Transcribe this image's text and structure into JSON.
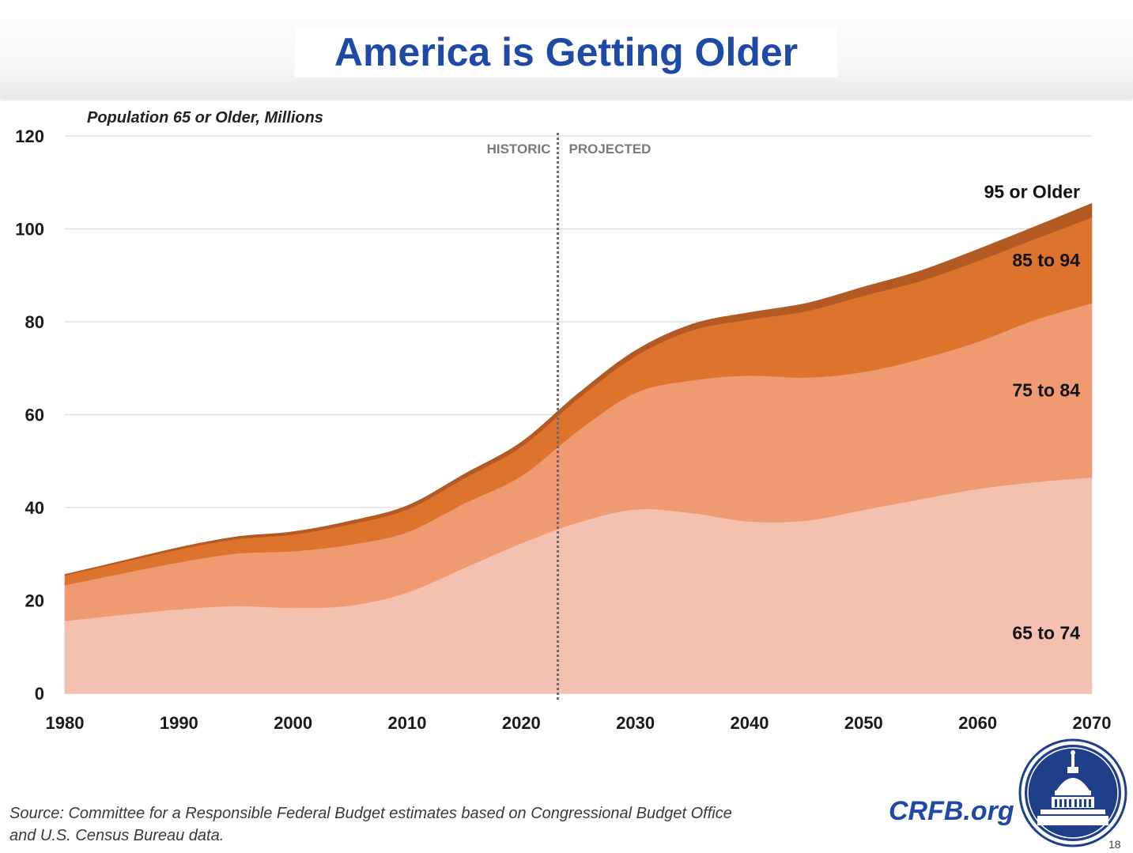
{
  "header": {
    "title": "America is Getting Older"
  },
  "chart_data": {
    "type": "area",
    "stacked": true,
    "ylabel": "Population 65 or Older, Millions",
    "xlim": [
      1980,
      2070
    ],
    "ylim": [
      0,
      120
    ],
    "x_ticks": [
      1980,
      1990,
      2000,
      2010,
      2020,
      2030,
      2040,
      2050,
      2060,
      2070
    ],
    "y_ticks": [
      0,
      20,
      40,
      60,
      80,
      100,
      120
    ],
    "grid": true,
    "divider": {
      "x": 2023.2,
      "left_label": "HISTORIC",
      "right_label": "PROJECTED"
    },
    "x": [
      1980,
      1985,
      1990,
      1995,
      2000,
      2005,
      2010,
      2015,
      2020,
      2025,
      2030,
      2035,
      2040,
      2045,
      2050,
      2055,
      2060,
      2065,
      2070
    ],
    "series": [
      {
        "name": "65 to 74",
        "color": "#f4c1b0",
        "values": [
          15.6,
          16.9,
          18.1,
          18.8,
          18.4,
          18.9,
          21.7,
          27.0,
          32.3,
          36.8,
          39.6,
          38.8,
          37.0,
          37.2,
          39.5,
          41.8,
          44.0,
          45.5,
          46.5
        ]
      },
      {
        "name": "75 to 84",
        "color": "#f09a72",
        "values": [
          7.7,
          8.9,
          10.1,
          11.3,
          12.2,
          13.1,
          13.0,
          13.9,
          14.5,
          19.8,
          25.1,
          28.6,
          31.4,
          30.8,
          29.7,
          30.2,
          31.7,
          34.9,
          37.5
        ]
      },
      {
        "name": "85 to 94",
        "color": "#de732e",
        "values": [
          2.1,
          2.4,
          2.8,
          3.1,
          3.6,
          4.4,
          4.9,
          5.4,
          6.3,
          6.9,
          7.9,
          10.8,
          12.1,
          14.3,
          16.4,
          16.8,
          17.4,
          17.4,
          18.5
        ]
      },
      {
        "name": "95 or Older",
        "color": "#b35a24",
        "values": [
          0.2,
          0.3,
          0.4,
          0.5,
          0.6,
          0.7,
          0.8,
          0.9,
          1.0,
          1.1,
          1.2,
          1.3,
          1.5,
          1.7,
          1.9,
          2.2,
          2.5,
          2.7,
          3.0
        ]
      }
    ]
  },
  "footer": {
    "source_line1": "Source: Committee for a Responsible Federal Budget estimates based on Congressional Budget Office",
    "source_line2": "and U.S. Census Bureau data.",
    "site": "CRFB.org",
    "page_number": "18"
  },
  "icons": {
    "seal": "capitol-seal-icon"
  }
}
